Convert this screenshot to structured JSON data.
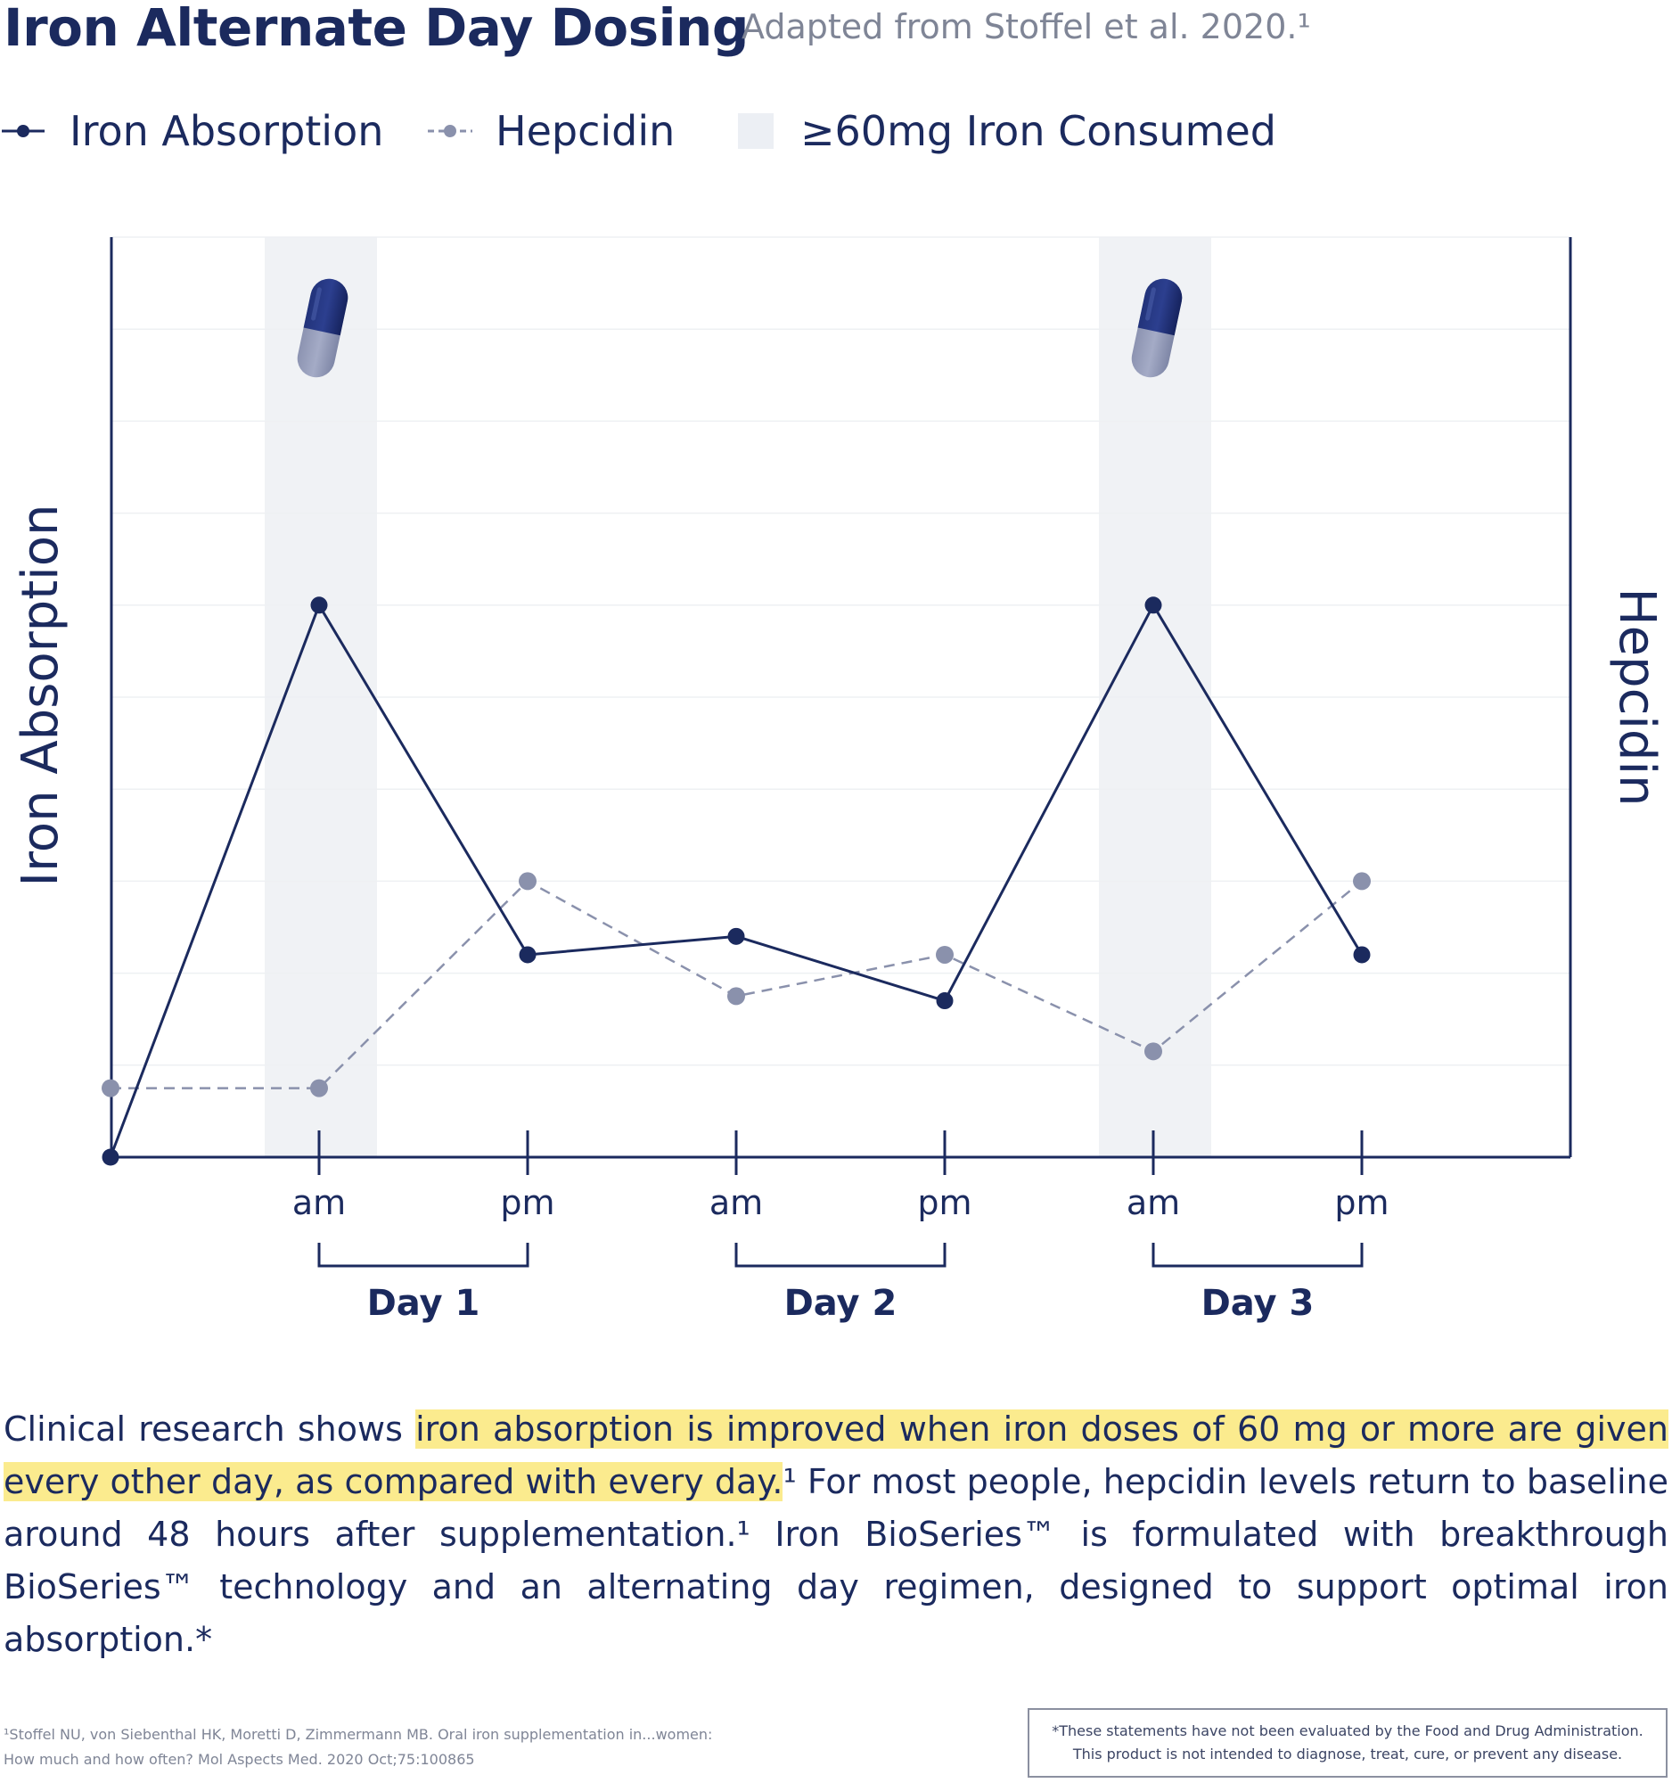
{
  "header": {
    "title": "Iron Alternate Day Dosing",
    "subtitle": "Adapted from Stoffel et al. 2020.¹"
  },
  "legend": {
    "items": [
      {
        "label": "Iron Absorption",
        "color": "#1b2a5e",
        "style": "solid-line-dot"
      },
      {
        "label": "Hepcidin",
        "color": "#8a91ac",
        "style": "dashed-line-dot"
      },
      {
        "label": "≥60mg Iron Consumed",
        "color": "#f0f2f5",
        "style": "shaded-band"
      }
    ]
  },
  "chart_data": {
    "type": "line",
    "title": "Iron Alternate Day Dosing",
    "subtitle": "Adapted from Stoffel et al. 2020.¹",
    "ylabel_left": "Iron Absorption",
    "ylabel_right": "Hepcidin",
    "ylim": [
      0,
      10
    ],
    "x_tick_labels": [
      "am",
      "pm",
      "am",
      "pm",
      "am",
      "pm"
    ],
    "day_groups": [
      {
        "label": "Day 1",
        "ticks": [
          0,
          1
        ]
      },
      {
        "label": "Day 2",
        "ticks": [
          2,
          3
        ]
      },
      {
        "label": "Day 3",
        "ticks": [
          4,
          5
        ]
      }
    ],
    "x": [
      -1,
      0,
      1,
      2,
      3,
      4,
      5
    ],
    "series": [
      {
        "name": "Iron Absorption",
        "color": "#1b2a5e",
        "line": "solid",
        "values": [
          0,
          6.0,
          2.2,
          2.4,
          1.7,
          6.0,
          2.2
        ]
      },
      {
        "name": "Hepcidin",
        "color": "#8a91ac",
        "line": "dashed",
        "values": [
          0.75,
          0.75,
          3.0,
          1.75,
          2.2,
          1.15,
          3.0
        ]
      }
    ],
    "shaded_bands": [
      {
        "label": "≥60mg Iron Consumed",
        "at_tick": 0
      },
      {
        "label": "≥60mg Iron Consumed",
        "at_tick": 4
      }
    ],
    "annotations": [
      {
        "icon": "capsule-icon",
        "at_tick": 0
      },
      {
        "icon": "capsule-icon",
        "at_tick": 4
      }
    ],
    "grid": true,
    "legend_position": "top-left"
  },
  "body": {
    "p_start": "Clinical research shows ",
    "p_highlight": "iron absorption is improved when iron doses of 60 mg or more are given every other day, as compared with every day.",
    "p_rest": "¹ For most people, hepcidin levels return to baseline around 48 hours after supplementation.¹ Iron BioSeries™ is formulated with breakthrough BioSeries™ technology and an alternating day regimen, designed to support optimal iron absorption.*",
    "highlight_color": "#fbeb8e"
  },
  "footer": {
    "reference_line1": "¹Stoffel NU, von Siebenthal HK, Moretti D, Zimmermann MB. Oral iron supplementation in...women:",
    "reference_line2": "How much and how often? Mol Aspects Med. 2020 Oct;75:100865",
    "disclaimer_line1": "*These statements have not been evaluated by the Food and Drug Administration.",
    "disclaimer_line2": "This product is not intended to diagnose, treat, cure, or prevent any disease."
  }
}
